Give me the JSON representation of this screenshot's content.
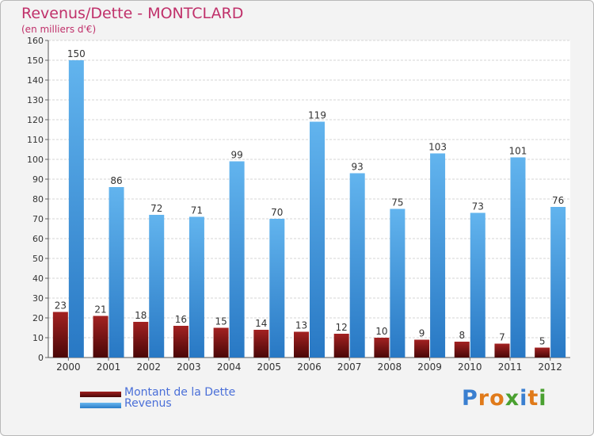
{
  "chart_data": {
    "type": "bar",
    "title": "Revenus/Dette - MONTCLARD",
    "subtitle": "(en milliers d'€)",
    "categories": [
      "2000",
      "2001",
      "2002",
      "2003",
      "2004",
      "2005",
      "2006",
      "2007",
      "2008",
      "2009",
      "2010",
      "2011",
      "2012"
    ],
    "series": [
      {
        "name": "Montant de la Dette",
        "color": "#7a1515",
        "values": [
          23,
          21,
          18,
          16,
          15,
          14,
          13,
          12,
          10,
          9,
          8,
          7,
          5
        ]
      },
      {
        "name": "Revenus",
        "color": "#4a9fe0",
        "values": [
          150,
          86,
          72,
          71,
          99,
          70,
          119,
          93,
          75,
          103,
          73,
          101,
          76
        ]
      }
    ],
    "ylim": [
      0,
      160
    ],
    "yticks": [
      0,
      10,
      20,
      30,
      40,
      50,
      60,
      70,
      80,
      90,
      100,
      110,
      120,
      130,
      140,
      150,
      160
    ],
    "grid": true,
    "legend_position": "bottom-left"
  },
  "logo": {
    "text": "Proxiti",
    "letters": [
      {
        "ch": "P",
        "color": "#3a7fd0"
      },
      {
        "ch": "r",
        "color": "#e07a1a"
      },
      {
        "ch": "o",
        "color": "#e07a1a"
      },
      {
        "ch": "x",
        "color": "#4aa030"
      },
      {
        "ch": "i",
        "color": "#3a7fd0"
      },
      {
        "ch": "t",
        "color": "#e07a1a"
      },
      {
        "ch": "i",
        "color": "#4aa030"
      }
    ]
  }
}
